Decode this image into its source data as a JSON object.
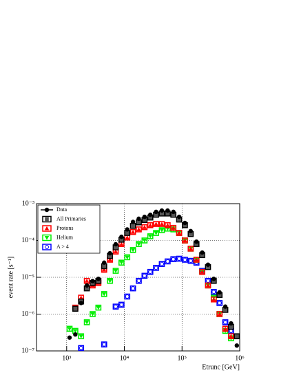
{
  "chart_data": {
    "type": "scatter",
    "x_label": "Etrunc [GeV]",
    "y_label": "event rate [s⁻¹]",
    "log_x": true,
    "log_y": true,
    "grid": true,
    "legend": "top-left",
    "xlim": [
      300,
      1000000
    ],
    "xticks": [
      {
        "value": 1000,
        "label": "10³"
      },
      {
        "value": 10000,
        "label": "10⁴"
      },
      {
        "value": 100000,
        "label": "10⁵"
      },
      {
        "value": 1000000,
        "label": "10⁶"
      }
    ],
    "ylim": [
      1e-07,
      0.001
    ],
    "yticks": [
      {
        "value": 1e-07,
        "label": "10⁻⁷"
      },
      {
        "value": 1e-06,
        "label": "10⁻⁶"
      },
      {
        "value": 1e-05,
        "label": "10⁻⁵"
      },
      {
        "value": 0.0001,
        "label": "10⁻⁴"
      },
      {
        "value": 0.001,
        "label": "10⁻³"
      }
    ],
    "x": [
      1122,
      1413,
      1778,
      2239,
      2818,
      3548,
      4467,
      5623,
      7079,
      8913,
      11220,
      14125,
      17783,
      22387,
      28184,
      35481,
      44668,
      56234,
      70795,
      89125,
      112202,
      141254,
      177828,
      223872,
      281838,
      354813,
      446684,
      562341,
      707946,
      891251
    ],
    "series": [
      {
        "name": "Data",
        "color": "#000000",
        "marker": "circle",
        "values": [
          2.3e-07,
          2.8e-07,
          2e-06,
          6e-06,
          7.9e-06,
          9.1e-06,
          2.5e-05,
          4.5e-05,
          7.9e-05,
          0.000126,
          0.0002,
          0.00032,
          0.00039,
          0.00044,
          0.0005,
          0.0006,
          0.00065,
          0.00065,
          0.0006,
          0.00044,
          0.0003,
          0.00018,
          9.3e-05,
          4.7e-05,
          2.2e-05,
          9.1e-06,
          3.9e-06,
          1.6e-06,
          5.6e-07,
          1.4e-07
        ]
      },
      {
        "name": "All Primaries",
        "color": "#555555",
        "marker": "square",
        "values": [
          null,
          1.4e-06,
          2.2e-06,
          5e-06,
          7e-06,
          8e-06,
          2e-05,
          3.8e-05,
          6.5e-05,
          0.000105,
          0.00016,
          0.00025,
          0.00031,
          0.00036,
          0.00042,
          0.0005,
          0.00054,
          0.00054,
          0.0005,
          0.00037,
          0.00026,
          0.00015,
          8e-05,
          4e-05,
          1.9e-05,
          8e-06,
          3.3e-06,
          1.3e-06,
          4.5e-07,
          2.5e-07
        ]
      },
      {
        "name": "Protons",
        "color": "#ff0000",
        "marker": "triangle-up",
        "values": [
          null,
          1.5e-06,
          2.8e-06,
          8e-06,
          6e-06,
          7e-06,
          1.6e-05,
          3e-05,
          5e-05,
          8e-05,
          0.00012,
          0.00017,
          0.0002,
          0.00023,
          0.00026,
          0.00028,
          0.00028,
          0.00026,
          0.00022,
          0.00016,
          0.0001,
          6e-05,
          3e-05,
          1.4e-05,
          6e-06,
          2.5e-06,
          1e-06,
          4e-07,
          2.5e-07,
          null
        ]
      },
      {
        "name": "Helium",
        "color": "#00ee00",
        "marker": "triangle-down",
        "values": [
          4e-07,
          3.5e-07,
          2.5e-07,
          6e-07,
          1e-06,
          1.5e-06,
          3.5e-06,
          8e-06,
          1.5e-05,
          2.5e-05,
          3.5e-05,
          5.5e-05,
          8e-05,
          0.0001,
          0.00013,
          0.00016,
          0.00019,
          0.00021,
          0.0002,
          0.00016,
          0.0001,
          6e-05,
          3e-05,
          1.4e-05,
          6e-06,
          2.8e-06,
          1e-06,
          3.5e-07,
          2.2e-07,
          null
        ]
      },
      {
        "name": "A > 4",
        "color": "#0000ff",
        "marker": "open-circle",
        "values": [
          null,
          null,
          1.2e-07,
          null,
          null,
          null,
          1.5e-07,
          null,
          1.6e-06,
          1.8e-06,
          3e-06,
          5e-06,
          8e-06,
          1.1e-05,
          1.4e-05,
          1.8e-05,
          2.3e-05,
          2.7e-05,
          3.1e-05,
          3.2e-05,
          3e-05,
          2.8e-05,
          2.5e-05,
          1.5e-05,
          8e-06,
          4e-06,
          2e-06,
          6e-07,
          3.5e-07,
          null
        ]
      }
    ]
  }
}
